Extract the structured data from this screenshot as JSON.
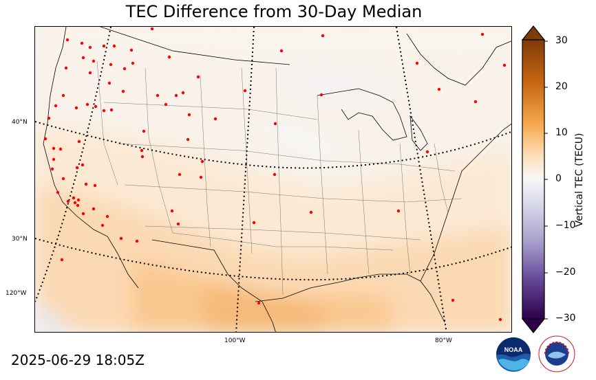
{
  "title": "TEC Difference from 30-Day Median",
  "timestamp": "2025-06-29 18:05Z",
  "colorbar": {
    "label": "Vertical TEC (TECU)",
    "ticks": [
      "30",
      "20",
      "10",
      "0",
      "−10",
      "−20",
      "−30"
    ],
    "min": -30,
    "max": 30
  },
  "graticule": {
    "lat_labels": [
      "40°N",
      "30°N"
    ],
    "lon_labels": [
      "120°W",
      "100°W",
      "80°W"
    ]
  },
  "colors": {
    "positive": "#8b4513",
    "negative": "#2d004b",
    "neutral": "#f7f7f7",
    "stations": "#ff0000"
  },
  "logos": {
    "noaa": "NOAA",
    "nws": "NATIONAL WEATHER SERVICE"
  }
}
